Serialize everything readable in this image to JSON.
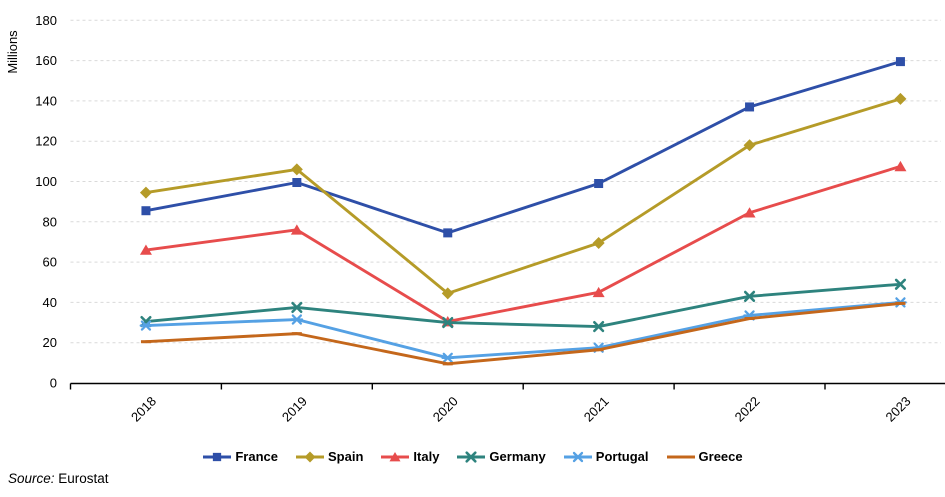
{
  "chart_data": {
    "type": "line",
    "title": "",
    "xlabel": "",
    "ylabel": "Millions",
    "categories": [
      "2018",
      "2019",
      "2020",
      "2021",
      "2022",
      "2023"
    ],
    "series": [
      {
        "name": "France",
        "color": "#2E4FA8",
        "marker": "square",
        "values": [
          85.5,
          99.5,
          74.5,
          99,
          137,
          159.5
        ]
      },
      {
        "name": "Spain",
        "color": "#B59B28",
        "marker": "diamond",
        "values": [
          94.5,
          106,
          44.5,
          69.5,
          118,
          141
        ]
      },
      {
        "name": "Italy",
        "color": "#E74C4C",
        "marker": "triangle",
        "values": [
          66,
          76,
          30.5,
          45,
          84.5,
          107.5
        ]
      },
      {
        "name": "Germany",
        "color": "#2E837E",
        "marker": "x",
        "values": [
          30.5,
          37.5,
          30,
          28,
          43,
          49
        ]
      },
      {
        "name": "Portugal",
        "color": "#55A1E4",
        "marker": "star",
        "values": [
          28.5,
          31.5,
          12.5,
          17.5,
          33.5,
          40
        ]
      },
      {
        "name": "Greece",
        "color": "#C4671B",
        "marker": "dash",
        "values": [
          20.5,
          24.5,
          9.5,
          16.5,
          32,
          39.5
        ]
      }
    ],
    "ylim": [
      0,
      180
    ],
    "ytick_step": 20,
    "ytick_labels": [
      "0",
      "20",
      "40",
      "60",
      "80",
      "100",
      "120",
      "140",
      "160",
      "180"
    ],
    "grid": "horizontal-dashed",
    "legend_position": "bottom"
  },
  "colors": {
    "gridline": "#D9D9D9",
    "axis": "#000000",
    "text": "#000000",
    "background": "#FFFFFF"
  },
  "source": {
    "prefix": "Source:",
    "text": " Eurostat"
  }
}
